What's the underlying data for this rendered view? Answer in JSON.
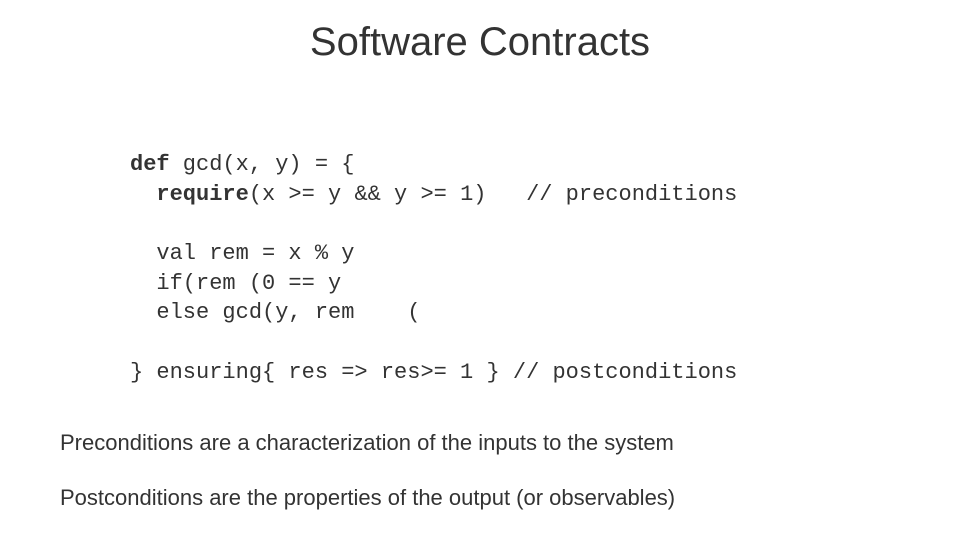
{
  "title": "Software Contracts",
  "code": {
    "l1a": "def",
    "l1b": " gcd(x, y) = {",
    "l2a": "  ",
    "l2b": "require",
    "l2c": "(x >= y && y >= 1)   // preconditions",
    "l3": "",
    "l4": "  val rem = x % y",
    "l5": "  if(rem (0 == y",
    "l6": "  else gcd(y, rem    (",
    "l7": "",
    "l8": "} ensuring{ res => res>= 1 } // postconditions"
  },
  "text": {
    "preconditions": "Preconditions are a characterization  of the inputs to the system",
    "postconditions": "Postconditions are the properties of the output (or observables)"
  },
  "colors": {
    "background": "#ffffff",
    "text": "#333333"
  },
  "fonts": {
    "title_size": 40,
    "code_size": 22,
    "body_size": 22,
    "code_family": "Courier New"
  }
}
